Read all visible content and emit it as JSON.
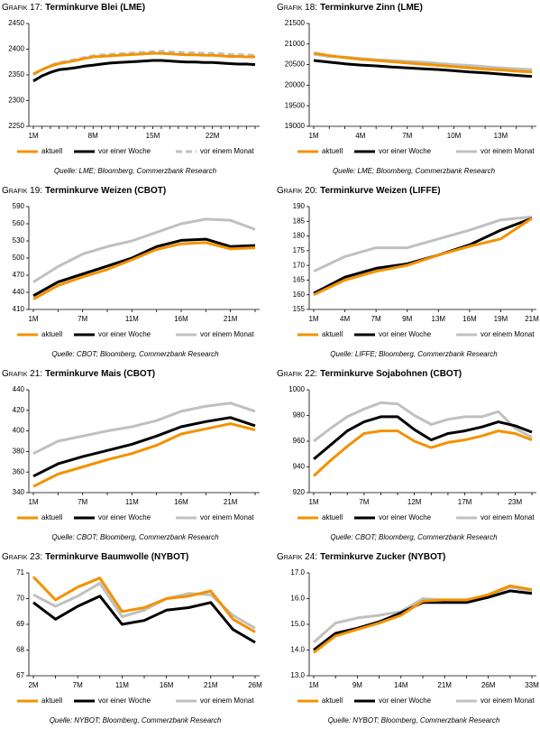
{
  "chart_data": [
    {
      "type": "line",
      "label": "Grafik 17:",
      "title": "Terminkurve Blei (LME)",
      "source": "Quelle: LME; Bloomberg, Commerzbank Research",
      "categories": [
        "1M",
        null,
        null,
        null,
        null,
        null,
        null,
        "8M",
        null,
        null,
        null,
        null,
        null,
        null,
        "15M",
        null,
        null,
        null,
        null,
        null,
        null,
        "22M",
        null,
        null,
        null,
        null,
        null
      ],
      "series": [
        {
          "name": "aktuell",
          "color": "#f39200",
          "values": [
            2352,
            2360,
            2367,
            2372,
            2375,
            2378,
            2382,
            2385,
            2386,
            2387,
            2388,
            2389,
            2390,
            2391,
            2392,
            2392,
            2391,
            2390,
            2389,
            2389,
            2388,
            2388,
            2387,
            2386,
            2386,
            2385,
            2385
          ]
        },
        {
          "name": "vor einer Woche",
          "color": "#000000",
          "values": [
            2338,
            2348,
            2355,
            2360,
            2362,
            2364,
            2367,
            2369,
            2371,
            2373,
            2374,
            2375,
            2376,
            2377,
            2378,
            2378,
            2377,
            2376,
            2375,
            2375,
            2374,
            2374,
            2373,
            2372,
            2371,
            2371,
            2370
          ]
        },
        {
          "name": "vor einem Monat",
          "color": "#c0c0c0",
          "dashed": true,
          "values": [
            2350,
            2360,
            2368,
            2374,
            2377,
            2380,
            2384,
            2387,
            2389,
            2390,
            2391,
            2392,
            2393,
            2394,
            2395,
            2396,
            2395,
            2394,
            2393,
            2393,
            2392,
            2392,
            2391,
            2390,
            2389,
            2389,
            2388
          ]
        }
      ],
      "ylim": [
        2250,
        2450
      ],
      "yticks": [
        2250,
        2300,
        2350,
        2400,
        2450
      ]
    },
    {
      "type": "line",
      "label": "Grafik 18:",
      "title": "Terminkurve Zinn (LME)",
      "source": "Quelle: LME; Bloomberg, Commerzbank Research",
      "categories": [
        "1M",
        null,
        null,
        "4M",
        null,
        null,
        "7M",
        null,
        null,
        "10M",
        null,
        null,
        "13M",
        null,
        null
      ],
      "series": [
        {
          "name": "aktuell",
          "color": "#f39200",
          "values": [
            20780,
            20720,
            20670,
            20630,
            20600,
            20570,
            20540,
            20510,
            20480,
            20450,
            20420,
            20390,
            20370,
            20340,
            20320
          ]
        },
        {
          "name": "vor einer Woche",
          "color": "#000000",
          "values": [
            20600,
            20560,
            20520,
            20490,
            20470,
            20440,
            20420,
            20400,
            20380,
            20350,
            20320,
            20300,
            20270,
            20240,
            20210
          ]
        },
        {
          "name": "vor einem Monat",
          "color": "#c0c0c0",
          "values": [
            20750,
            20700,
            20680,
            20650,
            20620,
            20600,
            20580,
            20560,
            20530,
            20500,
            20480,
            20450,
            20420,
            20400,
            20380
          ]
        }
      ],
      "ylim": [
        19000,
        21500
      ],
      "yticks": [
        19000,
        19500,
        20000,
        20500,
        21000,
        21500
      ]
    },
    {
      "type": "line",
      "label": "Grafik 19:",
      "title": "Terminkurve Weizen (CBOT)",
      "source": "Quelle: CBOT; Bloomberg, Commerzbank Research",
      "categories": [
        "1M",
        null,
        "7M",
        null,
        "11M",
        null,
        "16M",
        null,
        "21M",
        null
      ],
      "series": [
        {
          "name": "aktuell",
          "color": "#f39200",
          "values": [
            428,
            452,
            467,
            480,
            497,
            515,
            525,
            527,
            516,
            518
          ]
        },
        {
          "name": "vor einer Woche",
          "color": "#000000",
          "values": [
            434,
            458,
            472,
            486,
            500,
            520,
            531,
            533,
            520,
            522
          ]
        },
        {
          "name": "vor einem Monat",
          "color": "#c0c0c0",
          "values": [
            458,
            485,
            507,
            520,
            530,
            545,
            560,
            568,
            566,
            550
          ]
        }
      ],
      "ylim": [
        410,
        590
      ],
      "yticks": [
        410,
        440,
        470,
        500,
        530,
        560,
        590
      ]
    },
    {
      "type": "line",
      "label": "Grafik 20:",
      "title": "Terminkurve Weizen (LIFFE)",
      "source": "Quelle: LIFFE; Bloomberg, Commerzbank Research",
      "categories": [
        "1M",
        "4M",
        "7M",
        "9M",
        "13M",
        "16M",
        "19M",
        "21M"
      ],
      "series": [
        {
          "name": "aktuell",
          "color": "#f39200",
          "values": [
            160,
            165,
            168,
            170,
            173.5,
            176.5,
            179,
            186
          ]
        },
        {
          "name": "vor einer Woche",
          "color": "#000000",
          "values": [
            160.5,
            166,
            169,
            170.5,
            173.5,
            177,
            182,
            186
          ]
        },
        {
          "name": "vor einem Monat",
          "color": "#c0c0c0",
          "values": [
            168,
            173,
            176,
            176,
            179,
            182,
            185.5,
            186.5
          ]
        }
      ],
      "ylim": [
        155,
        190
      ],
      "yticks": [
        155,
        160,
        165,
        170,
        175,
        180,
        185,
        190
      ]
    },
    {
      "type": "line",
      "label": "Grafik 21:",
      "title": "Terminkurve Mais (CBOT)",
      "source": "Quelle: CBOT; Bloomberg, Commerzbank Research",
      "categories": [
        "1M",
        null,
        "7M",
        null,
        "11M",
        null,
        "16M",
        null,
        "21M",
        null
      ],
      "series": [
        {
          "name": "aktuell",
          "color": "#f39200",
          "values": [
            346,
            358,
            365,
            372,
            378,
            386,
            397,
            402,
            407,
            401
          ]
        },
        {
          "name": "vor einer Woche",
          "color": "#000000",
          "values": [
            356,
            368,
            375,
            381,
            387,
            395,
            404,
            409,
            413,
            405
          ]
        },
        {
          "name": "vor einem Monat",
          "color": "#c0c0c0",
          "values": [
            378,
            390,
            395,
            400,
            404,
            410,
            419,
            424,
            427,
            419
          ]
        }
      ],
      "ylim": [
        340,
        440
      ],
      "yticks": [
        340,
        360,
        380,
        400,
        420,
        440
      ]
    },
    {
      "type": "line",
      "label": "Grafik 22:",
      "title": "Terminkurve Sojabohnen (CBOT)",
      "source": "Quelle: CBOT; Bloomberg, Commerzbank Research",
      "categories": [
        "1M",
        null,
        null,
        "7M",
        null,
        null,
        "12M",
        null,
        null,
        "17M",
        null,
        null,
        "23M",
        null
      ],
      "series": [
        {
          "name": "aktuell",
          "color": "#f39200",
          "values": [
            933,
            945,
            956,
            966,
            968,
            968,
            960,
            955,
            959,
            961,
            964,
            968,
            966,
            961
          ]
        },
        {
          "name": "vor einer Woche",
          "color": "#000000",
          "values": [
            946,
            957,
            968,
            975,
            979,
            979,
            969,
            961,
            966,
            968,
            971,
            975,
            972,
            967
          ]
        },
        {
          "name": "vor einem Monat",
          "color": "#c0c0c0",
          "values": [
            960,
            970,
            979,
            985,
            990,
            989,
            980,
            973,
            977,
            979,
            979,
            983,
            970,
            963
          ]
        }
      ],
      "ylim": [
        920,
        1000
      ],
      "yticks": [
        920,
        940,
        960,
        980,
        1000
      ]
    },
    {
      "type": "line",
      "label": "Grafik 23:",
      "title": "Terminkurve Baumwolle (NYBOT)",
      "source": "Quelle: NYBOT; Bloomberg, Commerzbank Research",
      "categories": [
        "2M",
        null,
        "7M",
        null,
        "11M",
        null,
        "16M",
        null,
        "21M",
        null,
        "26M"
      ],
      "series": [
        {
          "name": "aktuell",
          "color": "#f39200",
          "values": [
            70.85,
            69.95,
            70.45,
            70.8,
            69.5,
            69.65,
            70.0,
            70.1,
            70.3,
            69.2,
            68.7
          ]
        },
        {
          "name": "vor einer Woche",
          "color": "#000000",
          "values": [
            69.85,
            69.2,
            69.7,
            70.1,
            69.0,
            69.15,
            69.55,
            69.65,
            69.85,
            68.8,
            68.3
          ]
        },
        {
          "name": "vor einem Monat",
          "color": "#c0c0c0",
          "values": [
            70.15,
            69.7,
            70.1,
            70.6,
            69.3,
            69.55,
            70.0,
            70.2,
            70.15,
            69.35,
            68.85
          ]
        }
      ],
      "ylim": [
        67,
        71
      ],
      "yticks": [
        67,
        68,
        69,
        70,
        71
      ]
    },
    {
      "type": "line",
      "label": "Grafik 24:",
      "title": "Terminkurve Zucker (NYBOT)",
      "source": "Quelle: NYBOT; Bloomberg, Commerzbank Research",
      "categories": [
        "1M",
        null,
        "9M",
        null,
        "14M",
        null,
        "21M",
        null,
        "26M",
        null,
        "33M"
      ],
      "series": [
        {
          "name": "aktuell",
          "color": "#f39200",
          "values": [
            13.9,
            14.55,
            14.8,
            15.05,
            15.35,
            15.9,
            15.95,
            15.95,
            16.15,
            16.5,
            16.35
          ]
        },
        {
          "name": "vor einer Woche",
          "color": "#000000",
          "values": [
            14.0,
            14.65,
            14.85,
            15.1,
            15.45,
            15.85,
            15.85,
            15.85,
            16.05,
            16.3,
            16.2
          ]
        },
        {
          "name": "vor einem Monat",
          "color": "#c0c0c0",
          "values": [
            14.3,
            15.05,
            15.25,
            15.35,
            15.5,
            16.0,
            15.95,
            15.95,
            16.1,
            16.45,
            16.3
          ]
        }
      ],
      "ylim": [
        13,
        17
      ],
      "yticks": [
        {
          "value": 13,
          "label": "13.0"
        },
        {
          "value": 14,
          "label": "14.0"
        },
        {
          "value": 15,
          "label": "15.0"
        },
        {
          "value": 16,
          "label": "16.0"
        },
        {
          "value": 17,
          "label": "17.0"
        }
      ]
    }
  ]
}
